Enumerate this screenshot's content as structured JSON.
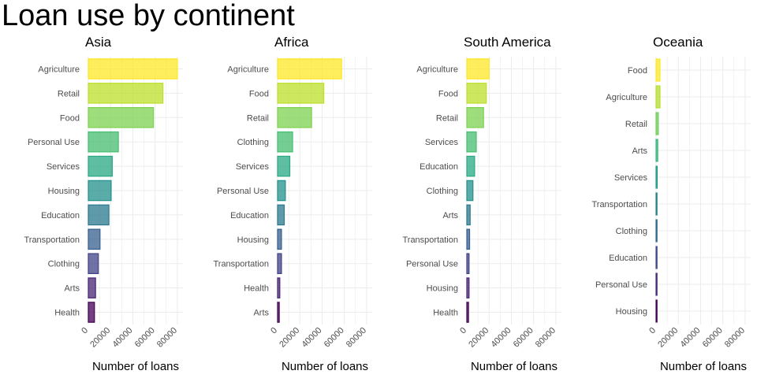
{
  "title": "Loan use by continent",
  "chart_data": {
    "type": "bar",
    "orientation": "horizontal",
    "xlabel": "Number of loans",
    "xlim": [
      0,
      85000
    ],
    "xticks": [
      0,
      20000,
      40000,
      60000,
      80000
    ],
    "grid": true,
    "color_scale": "viridis (by rank within panel)",
    "panels": [
      {
        "name": "Asia",
        "categories": [
          "Agriculture",
          "Retail",
          "Food",
          "Personal Use",
          "Services",
          "Housing",
          "Education",
          "Transportation",
          "Clothing",
          "Arts",
          "Health"
        ],
        "values": [
          80000,
          67000,
          58500,
          27000,
          21500,
          20500,
          18500,
          10500,
          9000,
          6500,
          5500
        ]
      },
      {
        "name": "Africa",
        "categories": [
          "Agriculture",
          "Food",
          "Retail",
          "Clothing",
          "Services",
          "Personal Use",
          "Education",
          "Housing",
          "Transportation",
          "Health",
          "Arts"
        ],
        "values": [
          57500,
          41500,
          30500,
          13500,
          11000,
          7000,
          6000,
          3500,
          3500,
          2000,
          1500
        ]
      },
      {
        "name": "South America",
        "categories": [
          "Agriculture",
          "Food",
          "Retail",
          "Services",
          "Education",
          "Clothing",
          "Arts",
          "Transportation",
          "Personal Use",
          "Housing",
          "Health"
        ],
        "values": [
          20000,
          17500,
          15000,
          8500,
          7000,
          5500,
          3000,
          2500,
          2000,
          2000,
          1500
        ]
      },
      {
        "name": "Oceania",
        "categories": [
          "Food",
          "Agriculture",
          "Retail",
          "Arts",
          "Services",
          "Transportation",
          "Clothing",
          "Education",
          "Personal Use",
          "Housing"
        ],
        "values": [
          3500,
          3500,
          2000,
          1500,
          1000,
          800,
          600,
          500,
          300,
          200
        ]
      }
    ]
  }
}
